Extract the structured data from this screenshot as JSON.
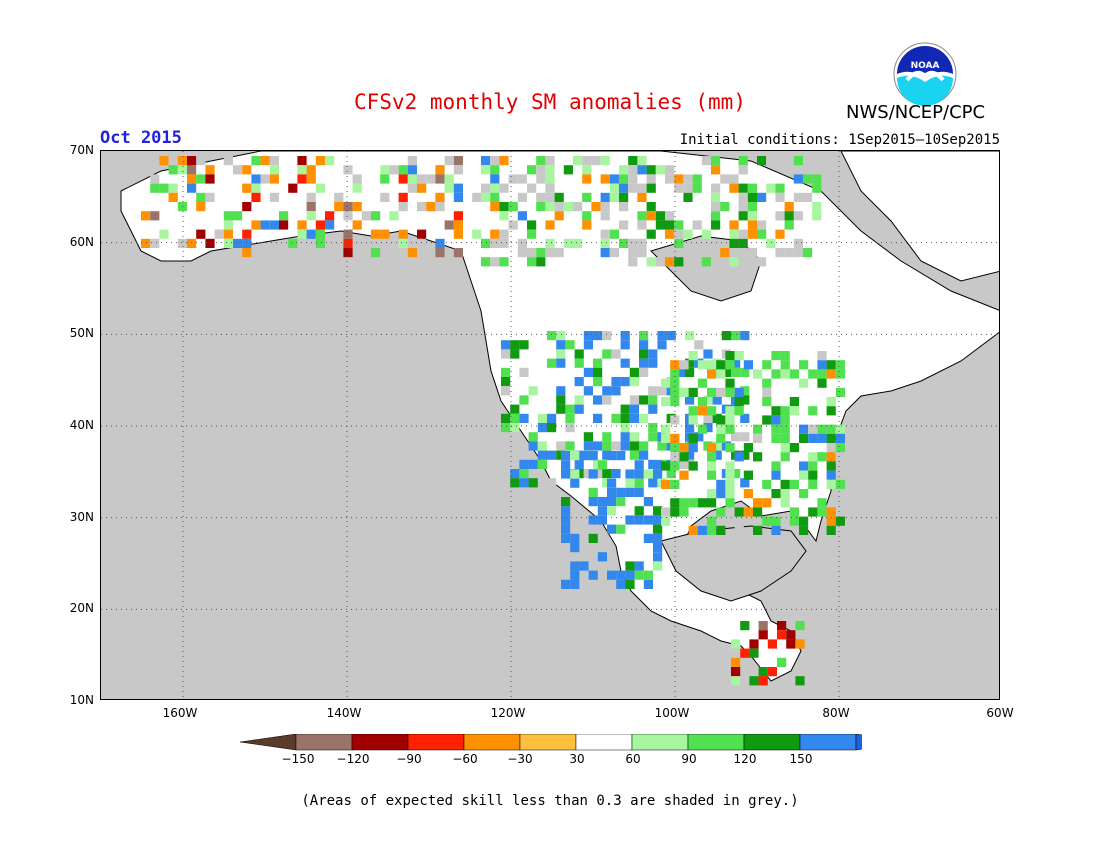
{
  "header": {
    "title": "CFSv2 monthly SM anomalies (mm)",
    "agency": "NWS/NCEP/CPC",
    "month": "Oct 2015",
    "initial_conditions": "Initial conditions: 1Sep2015–10Sep2015",
    "logo_text": "NOAA"
  },
  "map": {
    "lat_labels": [
      "70N",
      "60N",
      "50N",
      "40N",
      "30N",
      "20N",
      "10N"
    ],
    "lon_labels": [
      "160W",
      "140W",
      "120W",
      "100W",
      "80W",
      "60W"
    ],
    "ocean_color": "#c8c8c8",
    "land_color": "#ffffff"
  },
  "legend": {
    "labels": [
      "−150",
      "−120",
      "−90",
      "−60",
      "−30",
      "30",
      "60",
      "90",
      "120",
      "150"
    ],
    "colors": [
      "#5a3a2a",
      "#9a7468",
      "#a00000",
      "#ff2000",
      "#ff9000",
      "#ffc040",
      "#ffffff",
      "#a8f5a0",
      "#50e050",
      "#109a10",
      "#3388ee",
      "#2060e0"
    ]
  },
  "footnote": "(Areas of expected skill less than 0.3 are shaded in grey.)"
}
